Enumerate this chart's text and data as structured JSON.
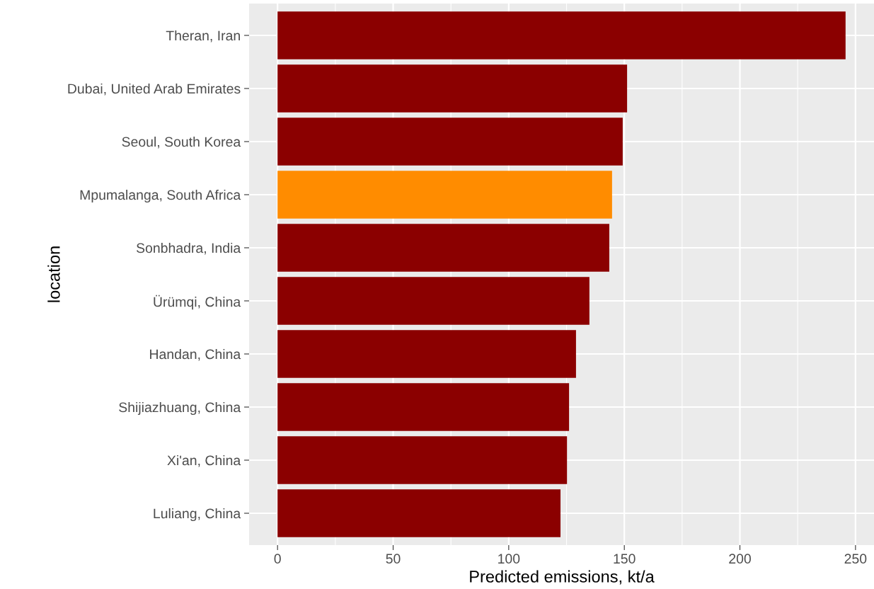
{
  "chart_data": {
    "type": "bar",
    "orientation": "horizontal",
    "xlabel": "Predicted emissions, kt/a",
    "ylabel": "location",
    "categories": [
      "Theran, Iran",
      "Dubai, United Arab Emirates",
      "Seoul, South Korea",
      "Mpumalanga, South Africa",
      "Sonbhadra, India",
      "Ürümqi, China",
      "Handan, China",
      "Shijiazhuang, China",
      "Xi'an, China",
      "Luliang, China"
    ],
    "values": [
      245.7,
      151.2,
      149.3,
      144.7,
      143.5,
      134.9,
      129.1,
      126.1,
      125.2,
      122.4
    ],
    "colors": [
      "#8b0000",
      "#8b0000",
      "#8b0000",
      "#ff8c00",
      "#8b0000",
      "#8b0000",
      "#8b0000",
      "#8b0000",
      "#8b0000",
      "#8b0000"
    ],
    "xlim": [
      -12.3,
      258
    ],
    "xticks": [
      0,
      50,
      100,
      150,
      200,
      250
    ],
    "grid": true
  }
}
